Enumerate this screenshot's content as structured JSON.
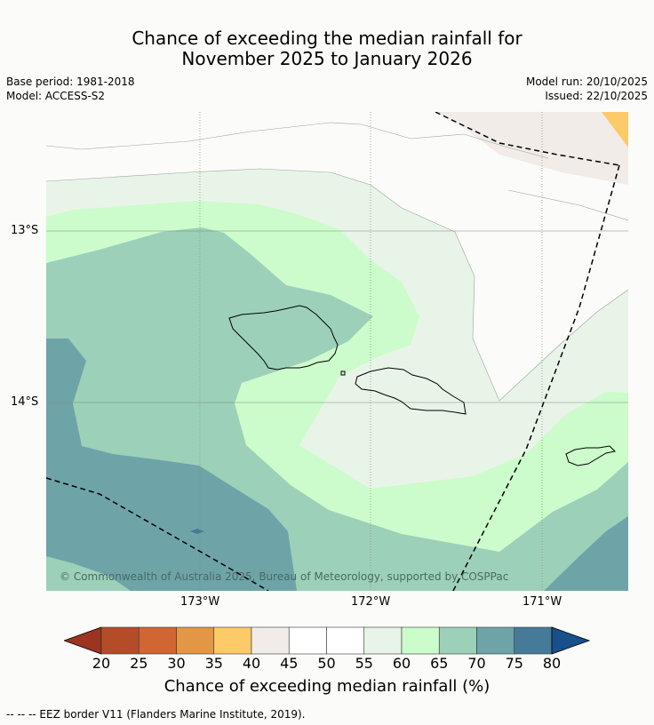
{
  "title": {
    "line1": "Chance of exceeding the median rainfall for",
    "line2": "November 2025 to January 2026"
  },
  "meta": {
    "base_period": "Base period: 1981-2018",
    "model": "Model: ACCESS-S2",
    "model_run": "Model run: 20/10/2025",
    "issued": "Issued: 22/10/2025"
  },
  "map": {
    "lat_labels": [
      "13°S",
      "14°S"
    ],
    "lon_labels": [
      "173°W",
      "172°W",
      "171°W"
    ],
    "copyright": "© Commonwealth of Australia 2025, Bureau of Meteorology, supported by COSPPac",
    "colors": {
      "c30_35": "#fdca6a",
      "c40_45": "#f1ece7",
      "c45_55": "#fbfcfa",
      "c55_60": "#e9f4e8",
      "c60_65": "#ccfccb",
      "c65_70": "#9dd0b9",
      "c70_75": "#6ea4a8",
      "c75_80": "#457a99"
    }
  },
  "colorbar": {
    "title": "Chance of exceeding median rainfall (%)",
    "ticks": [
      "20",
      "25",
      "30",
      "35",
      "40",
      "45",
      "50",
      "55",
      "60",
      "65",
      "70",
      "75",
      "80"
    ],
    "colors": [
      "#9b3421",
      "#b44c28",
      "#cf6633",
      "#e39646",
      "#fdca6a",
      "#f1ece7",
      "#ffffff",
      "#ffffff",
      "#e9f4e8",
      "#ccfccb",
      "#9dd0b9",
      "#6ea4a8",
      "#457a99",
      "#17508a"
    ]
  },
  "footer": "--  --  -- EEZ border V11 (Flanders Marine Institute, 2019)."
}
